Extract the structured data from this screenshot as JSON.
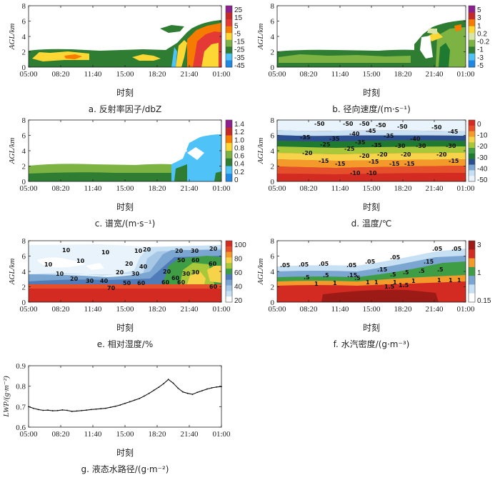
{
  "chart_data": [
    {
      "id": "a",
      "type": "heatmap",
      "caption": "a. 反射率因子/dbZ",
      "xlabel": "时刻",
      "ylabel": "AGL/km",
      "xticks": [
        "05:00",
        "08:20",
        "11:40",
        "15:00",
        "18:20",
        "21:40",
        "01:00"
      ],
      "yticks": [
        "0",
        "2",
        "4",
        "6",
        "8"
      ],
      "ylim": [
        0,
        8
      ],
      "colorbar_labels": [
        "25",
        "15",
        "5",
        "-5",
        "-15",
        "-25",
        "-35",
        "-45"
      ],
      "colors": [
        "#8e1f8e",
        "#c62828",
        "#e53935",
        "#f57c00",
        "#fdd835",
        "#7cb342",
        "#2e7d32",
        "#4fc3f7",
        "#1e88e5"
      ]
    },
    {
      "id": "b",
      "type": "heatmap",
      "caption": "b. 径向速度/(m·s⁻¹)",
      "xlabel": "时刻",
      "ylabel": "AGL/km",
      "xticks": [
        "05:00",
        "08:20",
        "11:40",
        "15:00",
        "18:20",
        "21:40",
        "01:00"
      ],
      "yticks": [
        "0",
        "2",
        "4",
        "6",
        "8"
      ],
      "ylim": [
        0,
        8
      ],
      "colorbar_labels": [
        "5",
        "3",
        "1",
        "0.2",
        "-0.2",
        "-1",
        "-3",
        "-5"
      ],
      "colors": [
        "#8e1f8e",
        "#c62828",
        "#f57c00",
        "#fdd835",
        "#d8e6a8",
        "#7cb342",
        "#2e7d32",
        "#4fc3f7",
        "#1e88e5"
      ]
    },
    {
      "id": "c",
      "type": "heatmap",
      "caption": "c. 谱宽/(m·s⁻¹)",
      "xlabel": "时刻",
      "ylabel": "AGL/km",
      "xticks": [
        "05:00",
        "08:20",
        "11:40",
        "15:00",
        "18:20",
        "21:40",
        "01:00"
      ],
      "yticks": [
        "0",
        "2",
        "4",
        "6",
        "8"
      ],
      "ylim": [
        0,
        8
      ],
      "colorbar_labels": [
        "1.4",
        "1.2",
        "1.0",
        "0.8",
        "0.6",
        "0.4",
        "0.2",
        "0"
      ],
      "colors": [
        "#8e1f8e",
        "#c62828",
        "#f57c00",
        "#fdd835",
        "#7cb342",
        "#2e7d32",
        "#4fc3f7",
        "#1e88e5"
      ]
    },
    {
      "id": "d",
      "type": "heatmap",
      "caption": "d. 温度/℃",
      "xlabel": "时刻",
      "ylabel": "AGL/km",
      "xticks": [
        "05:00",
        "08:20",
        "11:40",
        "15:00",
        "18:20",
        "21:40",
        "01:00"
      ],
      "yticks": [
        "0",
        "2",
        "4",
        "6",
        "8"
      ],
      "ylim": [
        0,
        8
      ],
      "colorbar_labels": [
        "0",
        "-10",
        "-20",
        "-30",
        "-40",
        "-50"
      ],
      "contour_labels": [
        "-50",
        "-50",
        "-50",
        "-50",
        "-50",
        "-50",
        "-45",
        "-40",
        "-45",
        "-35",
        "-35",
        "-35",
        "-40",
        "-35",
        "-35",
        "-30",
        "-30",
        "-30",
        "-25",
        "-25",
        "-20",
        "-20",
        "-20",
        "-20",
        "-20",
        "-15",
        "-15",
        "-15",
        "-15",
        "-15",
        "-15",
        "-10",
        "-10"
      ]
    },
    {
      "id": "e",
      "type": "heatmap",
      "caption": "e. 相对湿度/%",
      "xlabel": "时刻",
      "ylabel": "AGL/km",
      "xticks": [
        "05:00",
        "08:20",
        "11:40",
        "15:00",
        "18:20",
        "21:40",
        "01:00"
      ],
      "yticks": [
        "0",
        "2",
        "4",
        "6",
        "8"
      ],
      "ylim": [
        0,
        8
      ],
      "colorbar_labels": [
        "100",
        "80",
        "60",
        "40",
        "20"
      ],
      "contour_labels": [
        "10",
        "10",
        "10",
        "10",
        "10",
        "10",
        "20",
        "20",
        "20",
        "30",
        "30",
        "40",
        "20",
        "30",
        "40",
        "50",
        "70",
        "60",
        "50",
        "60",
        "60",
        "60",
        "60",
        "20",
        "30",
        "20",
        "20",
        "30",
        "60",
        "60"
      ]
    },
    {
      "id": "f",
      "type": "heatmap",
      "caption": "f. 水汽密度/(g·m⁻³)",
      "xlabel": "时刻",
      "ylabel": "AGL/km",
      "xticks": [
        "05:00",
        "08:20",
        "11:40",
        "15:00",
        "18:20",
        "21:40",
        "01:00"
      ],
      "yticks": [
        "0",
        "2",
        "4",
        "6",
        "8"
      ],
      "ylim": [
        0,
        8
      ],
      "colorbar_labels": [
        "3",
        "1",
        "0.15"
      ],
      "contour_labels": [
        ".05",
        ".05",
        ".05",
        ".05",
        ".05",
        ".05",
        ".05",
        ".05",
        ".15",
        ".15",
        ".15",
        ".5",
        ".5",
        ".5",
        ".5",
        ".5",
        ".5",
        ".5",
        "1",
        "1",
        "1",
        "1",
        "1",
        "1",
        "1.5",
        "1.5",
        "1",
        "1",
        "1"
      ]
    },
    {
      "id": "g",
      "type": "line",
      "caption": "g. 液态水路径/(g·m⁻²)",
      "xlabel": "时刻",
      "ylabel": "LWP/(g·m⁻²)",
      "xticks": [
        "05:00",
        "08:20",
        "11:40",
        "15:00",
        "18:20",
        "21:40",
        "01:00"
      ],
      "yticks": [
        "0.6",
        "0.7",
        "0.8",
        "0.9"
      ],
      "ylim": [
        0.6,
        0.9
      ],
      "x_hours": [
        0,
        0.5,
        1,
        1.5,
        2,
        2.5,
        3,
        3.5,
        4,
        4.5,
        5,
        5.5,
        6,
        6.5,
        7,
        7.5,
        8,
        8.5,
        9,
        9.5,
        10,
        10.5,
        11,
        11.5,
        12,
        12.5,
        13,
        13.5,
        14,
        14.5,
        15,
        15.5,
        16,
        16.5,
        17,
        17.5,
        18,
        18.5,
        19,
        19.5,
        20
      ],
      "values": [
        0.7,
        0.692,
        0.686,
        0.682,
        0.683,
        0.68,
        0.681,
        0.684,
        0.682,
        0.677,
        0.679,
        0.681,
        0.683,
        0.686,
        0.688,
        0.69,
        0.692,
        0.697,
        0.702,
        0.708,
        0.716,
        0.724,
        0.732,
        0.74,
        0.752,
        0.765,
        0.78,
        0.795,
        0.812,
        0.833,
        0.815,
        0.79,
        0.772,
        0.765,
        0.76,
        0.77,
        0.778,
        0.786,
        0.792,
        0.796,
        0.798
      ]
    }
  ],
  "colors": {
    "white": "#ffffff",
    "pale_blue": "#e8f3fb",
    "light_blue": "#c8e0f4",
    "mid_blue": "#a6c8e6",
    "steel_blue": "#7ba6d2",
    "dark_blue": "#4f7cb8",
    "navy": "#2c4f8f",
    "dark_green": "#1f7a31",
    "green": "#3f9d45",
    "yellow_green": "#a8c83a",
    "yellow": "#f7d34a",
    "orange": "#f39a2b",
    "red_orange": "#e5502a",
    "red": "#d32b22",
    "dark_red": "#9c1b17"
  }
}
